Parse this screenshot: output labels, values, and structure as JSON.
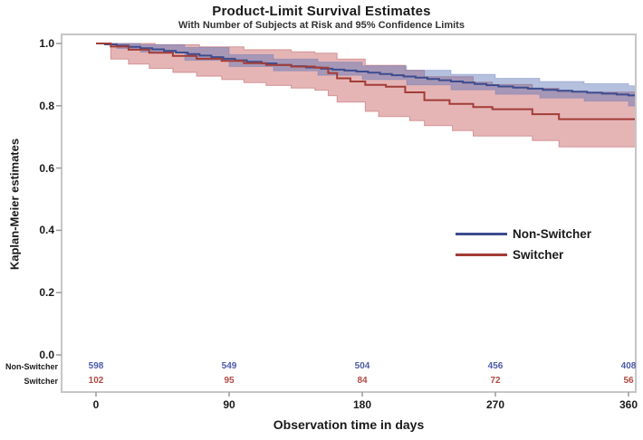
{
  "chart_data": {
    "type": "line",
    "subtype": "kaplan-meier-step-curves-with-confidence-bands",
    "title": "Product-Limit Survival Estimates",
    "subtitle": "With Number of Subjects at Risk and 95% Confidence Limits",
    "xlabel": "Observation time in days",
    "ylabel": "Kaplan-Meier estimates",
    "x_ticks": [
      0,
      90,
      180,
      270,
      360
    ],
    "y_ticks": [
      0.0,
      0.2,
      0.4,
      0.6,
      0.8,
      1.0
    ],
    "xlim": [
      0,
      365
    ],
    "ylim": [
      0.0,
      1.0
    ],
    "grid": false,
    "legend_position": "inside-right-middle",
    "series": [
      {
        "name": "Non-Switcher",
        "color": "#3c4c8f",
        "band_fill": "rgba(92,116,182,0.45)",
        "band_edge": "rgba(92,116,182,0.35)",
        "steps": [
          [
            0,
            1.0
          ],
          [
            6,
            0.997
          ],
          [
            14,
            0.993
          ],
          [
            22,
            0.989
          ],
          [
            30,
            0.985
          ],
          [
            38,
            0.981
          ],
          [
            46,
            0.976
          ],
          [
            54,
            0.971
          ],
          [
            62,
            0.966
          ],
          [
            70,
            0.961
          ],
          [
            78,
            0.956
          ],
          [
            86,
            0.951
          ],
          [
            94,
            0.946
          ],
          [
            102,
            0.941
          ],
          [
            112,
            0.936
          ],
          [
            122,
            0.931
          ],
          [
            132,
            0.927
          ],
          [
            142,
            0.923
          ],
          [
            152,
            0.919
          ],
          [
            160,
            0.916
          ],
          [
            168,
            0.913
          ],
          [
            176,
            0.91
          ],
          [
            184,
            0.906
          ],
          [
            192,
            0.902
          ],
          [
            200,
            0.898
          ],
          [
            208,
            0.894
          ],
          [
            216,
            0.89
          ],
          [
            224,
            0.886
          ],
          [
            232,
            0.882
          ],
          [
            240,
            0.878
          ],
          [
            248,
            0.874
          ],
          [
            256,
            0.87
          ],
          [
            264,
            0.866
          ],
          [
            272,
            0.862
          ],
          [
            282,
            0.858
          ],
          [
            292,
            0.855
          ],
          [
            302,
            0.851
          ],
          [
            312,
            0.848
          ],
          [
            322,
            0.845
          ],
          [
            332,
            0.842
          ],
          [
            342,
            0.839
          ],
          [
            352,
            0.836
          ],
          [
            360,
            0.833
          ]
        ],
        "ci_upper": [
          [
            0,
            1.0
          ],
          [
            14,
            1.0
          ],
          [
            30,
            0.996
          ],
          [
            60,
            0.987
          ],
          [
            90,
            0.964
          ],
          [
            120,
            0.95
          ],
          [
            150,
            0.94
          ],
          [
            180,
            0.928
          ],
          [
            210,
            0.914
          ],
          [
            240,
            0.901
          ],
          [
            270,
            0.888
          ],
          [
            300,
            0.878
          ],
          [
            330,
            0.871
          ],
          [
            360,
            0.864
          ]
        ],
        "ci_lower": [
          [
            0,
            1.0
          ],
          [
            14,
            0.984
          ],
          [
            30,
            0.972
          ],
          [
            60,
            0.946
          ],
          [
            90,
            0.926
          ],
          [
            120,
            0.912
          ],
          [
            150,
            0.898
          ],
          [
            180,
            0.884
          ],
          [
            210,
            0.867
          ],
          [
            240,
            0.851
          ],
          [
            270,
            0.837
          ],
          [
            300,
            0.825
          ],
          [
            330,
            0.815
          ],
          [
            360,
            0.799
          ]
        ]
      },
      {
        "name": "Switcher",
        "color": "#a33c36",
        "band_fill": "rgba(203,108,110,0.50)",
        "band_edge": "rgba(190,95,98,0.55)",
        "steps": [
          [
            0,
            1.0
          ],
          [
            10,
            0.99
          ],
          [
            22,
            0.98
          ],
          [
            36,
            0.97
          ],
          [
            52,
            0.96
          ],
          [
            68,
            0.951
          ],
          [
            85,
            0.944
          ],
          [
            100,
            0.937
          ],
          [
            115,
            0.931
          ],
          [
            132,
            0.926
          ],
          [
            148,
            0.922
          ],
          [
            157,
            0.905
          ],
          [
            163,
            0.888
          ],
          [
            172,
            0.878
          ],
          [
            182,
            0.867
          ],
          [
            196,
            0.861
          ],
          [
            209,
            0.843
          ],
          [
            222,
            0.818
          ],
          [
            239,
            0.806
          ],
          [
            255,
            0.796
          ],
          [
            268,
            0.789
          ],
          [
            295,
            0.773
          ],
          [
            313,
            0.757
          ]
        ],
        "ci_upper": [
          [
            0,
            1.0
          ],
          [
            18,
            1.0
          ],
          [
            40,
            0.996
          ],
          [
            70,
            0.989
          ],
          [
            100,
            0.98
          ],
          [
            132,
            0.973
          ],
          [
            148,
            0.969
          ],
          [
            163,
            0.95
          ],
          [
            182,
            0.93
          ],
          [
            209,
            0.914
          ],
          [
            222,
            0.893
          ],
          [
            255,
            0.876
          ],
          [
            268,
            0.868
          ],
          [
            295,
            0.856
          ],
          [
            313,
            0.844
          ]
        ],
        "ci_lower": [
          [
            0,
            1.0
          ],
          [
            10,
            0.95
          ],
          [
            22,
            0.934
          ],
          [
            36,
            0.92
          ],
          [
            52,
            0.907
          ],
          [
            68,
            0.895
          ],
          [
            85,
            0.884
          ],
          [
            100,
            0.874
          ],
          [
            115,
            0.865
          ],
          [
            132,
            0.857
          ],
          [
            148,
            0.85
          ],
          [
            157,
            0.832
          ],
          [
            163,
            0.812
          ],
          [
            182,
            0.782
          ],
          [
            191,
            0.765
          ],
          [
            212,
            0.752
          ],
          [
            222,
            0.736
          ],
          [
            241,
            0.72
          ],
          [
            255,
            0.703
          ],
          [
            295,
            0.688
          ],
          [
            313,
            0.668
          ]
        ]
      }
    ],
    "at_risk": {
      "times": [
        0,
        90,
        180,
        270,
        360
      ],
      "rows": [
        {
          "label": "Non-Switcher",
          "color": "#4a5ba6",
          "counts": [
            598,
            549,
            504,
            456,
            408
          ]
        },
        {
          "label": "Switcher",
          "color": "#b04a42",
          "counts": [
            102,
            95,
            84,
            72,
            56
          ]
        }
      ]
    },
    "frame_color": "#c6c6c6",
    "tick_color": "#9a9a9a"
  }
}
